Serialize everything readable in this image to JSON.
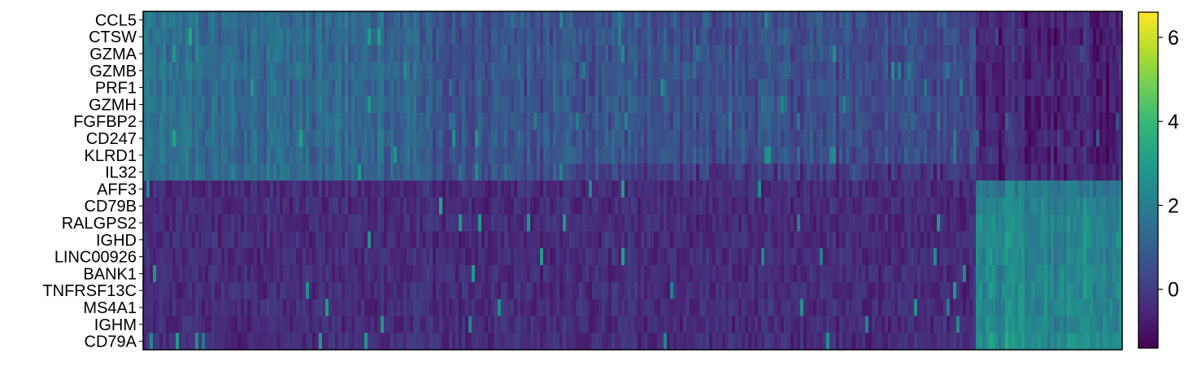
{
  "chart_data": {
    "type": "heatmap",
    "colormap": "viridis",
    "genes": [
      "CCL5",
      "CTSW",
      "GZMA",
      "GZMB",
      "PRF1",
      "GZMH",
      "FGFBP2",
      "CD247",
      "KLRD1",
      "IL32",
      "AFF3",
      "CD79B",
      "RALGPS2",
      "IGHD",
      "LINC00926",
      "BANK1",
      "TNFRSF13C",
      "MS4A1",
      "IGHM",
      "CD79A"
    ],
    "gene_groups": [
      {
        "genes": [
          "CCL5",
          "CTSW",
          "GZMA",
          "GZMB",
          "PRF1",
          "GZMH",
          "FGFBP2",
          "CD247",
          "KLRD1",
          "IL32"
        ],
        "cells_high_fraction": [
          0.0,
          0.85
        ]
      },
      {
        "genes": [
          "AFF3",
          "CD79B",
          "RALGPS2",
          "IGHD",
          "LINC00926",
          "BANK1",
          "TNFRSF13C",
          "MS4A1",
          "IGHM",
          "CD79A"
        ],
        "cells_high_fraction": [
          0.85,
          1.0
        ]
      }
    ],
    "approx_mean_expression": {
      "group1_in_first_cells": 1.6,
      "group1_in_middle_cells": 0.6,
      "group1_in_last_cells": -0.6,
      "group2_in_first_cells": -0.4,
      "group2_in_last_cells": 2.3
    },
    "colorbar": {
      "ticks": [
        "0",
        "2",
        "4",
        "6"
      ],
      "tick_values": [
        0,
        2,
        4,
        6
      ],
      "range": [
        -1.4,
        6.6
      ]
    },
    "xlabel": "",
    "ylabel": "",
    "title": ""
  },
  "colors": {
    "viridis": [
      "#440154",
      "#482878",
      "#3e4989",
      "#31688e",
      "#26828e",
      "#1f9e89",
      "#35b779",
      "#6ece58",
      "#b5de2b",
      "#fde725"
    ],
    "axis": "#000000"
  }
}
